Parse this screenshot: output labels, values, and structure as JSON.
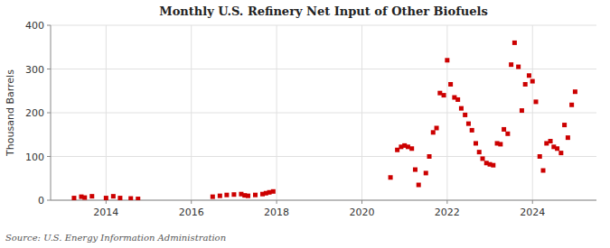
{
  "chart_data": {
    "type": "scatter",
    "title": "Monthly U.S. Refinery Net Input of Other Biofuels",
    "ylabel": "Thousand Barrels",
    "source": "Source: U.S. Energy Information Administration",
    "color": "#CC0000",
    "marker": "square",
    "grid": true,
    "xlim": [
      2012.7,
      2025.5
    ],
    "xticks": [
      2014,
      2016,
      2018,
      2020,
      2022,
      2024
    ],
    "ylim": [
      0,
      400
    ],
    "yticks": [
      0,
      100,
      200,
      300,
      400
    ],
    "x": [
      2013.25,
      2013.42,
      2013.5,
      2013.67,
      2014.0,
      2014.17,
      2014.33,
      2014.58,
      2014.75,
      2016.5,
      2016.67,
      2016.83,
      2017.0,
      2017.17,
      2017.25,
      2017.33,
      2017.5,
      2017.67,
      2017.75,
      2017.83,
      2017.92,
      2020.67,
      2020.83,
      2020.92,
      2021.0,
      2021.08,
      2021.17,
      2021.25,
      2021.33,
      2021.5,
      2021.58,
      2021.67,
      2021.75,
      2021.83,
      2021.92,
      2022.0,
      2022.08,
      2022.17,
      2022.25,
      2022.33,
      2022.42,
      2022.5,
      2022.58,
      2022.67,
      2022.75,
      2022.83,
      2022.92,
      2023.0,
      2023.08,
      2023.17,
      2023.25,
      2023.33,
      2023.42,
      2023.5,
      2023.58,
      2023.67,
      2023.75,
      2023.83,
      2023.92,
      2024.0,
      2024.08,
      2024.17,
      2024.25,
      2024.33,
      2024.42,
      2024.5,
      2024.58,
      2024.67,
      2024.75,
      2024.83,
      2024.92,
      2025.0
    ],
    "values": [
      5,
      8,
      6,
      9,
      5,
      9,
      5,
      4,
      3,
      8,
      10,
      12,
      13,
      14,
      11,
      10,
      12,
      14,
      16,
      18,
      20,
      52,
      115,
      122,
      125,
      122,
      118,
      70,
      35,
      62,
      100,
      155,
      165,
      245,
      240,
      320,
      265,
      235,
      230,
      210,
      195,
      175,
      160,
      130,
      110,
      95,
      85,
      82,
      80,
      130,
      128,
      162,
      152,
      310,
      360,
      305,
      205,
      265,
      285,
      272,
      225,
      100,
      68,
      130,
      135,
      122,
      118,
      108,
      172,
      143,
      218,
      248
    ]
  }
}
